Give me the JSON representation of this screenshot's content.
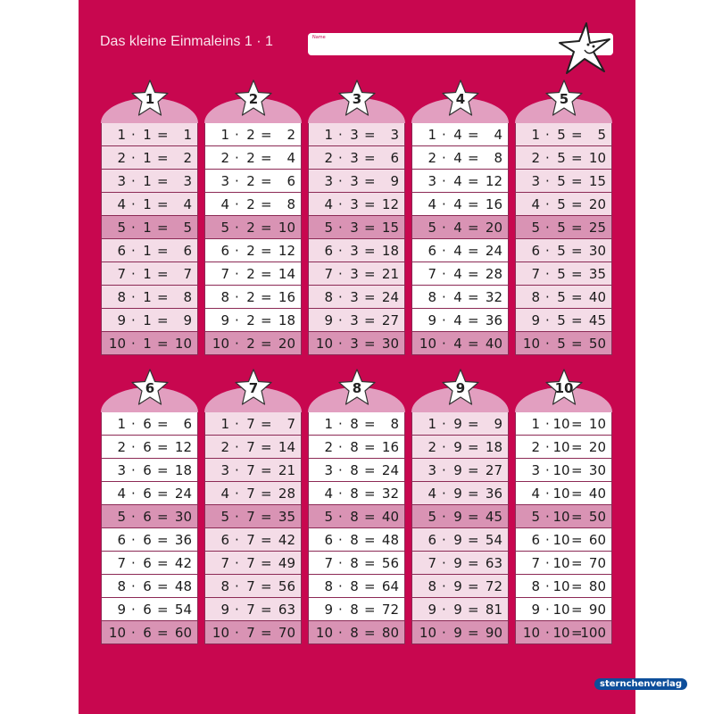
{
  "header": {
    "title": "Das kleine Einmaleins  1 · 1",
    "name_label": "Name"
  },
  "colors": {
    "background": "#c8074f",
    "row_light": "#f4dce7",
    "row_white": "#ffffff",
    "row_dark": "#d993b4",
    "arch": "#e29fc0",
    "logo": "#0d4e9b"
  },
  "publisher": "sternchenverlag",
  "tables": [
    {
      "n": "1",
      "rows": [
        [
          "1",
          "1",
          "1"
        ],
        [
          "2",
          "1",
          "2"
        ],
        [
          "3",
          "1",
          "3"
        ],
        [
          "4",
          "1",
          "4"
        ],
        [
          "5",
          "1",
          "5"
        ],
        [
          "6",
          "1",
          "6"
        ],
        [
          "7",
          "1",
          "7"
        ],
        [
          "8",
          "1",
          "8"
        ],
        [
          "9",
          "1",
          "9"
        ],
        [
          "10",
          "1",
          "10"
        ]
      ]
    },
    {
      "n": "2",
      "rows": [
        [
          "1",
          "2",
          "2"
        ],
        [
          "2",
          "2",
          "4"
        ],
        [
          "3",
          "2",
          "6"
        ],
        [
          "4",
          "2",
          "8"
        ],
        [
          "5",
          "2",
          "10"
        ],
        [
          "6",
          "2",
          "12"
        ],
        [
          "7",
          "2",
          "14"
        ],
        [
          "8",
          "2",
          "16"
        ],
        [
          "9",
          "2",
          "18"
        ],
        [
          "10",
          "2",
          "20"
        ]
      ]
    },
    {
      "n": "3",
      "rows": [
        [
          "1",
          "3",
          "3"
        ],
        [
          "2",
          "3",
          "6"
        ],
        [
          "3",
          "3",
          "9"
        ],
        [
          "4",
          "3",
          "12"
        ],
        [
          "5",
          "3",
          "15"
        ],
        [
          "6",
          "3",
          "18"
        ],
        [
          "7",
          "3",
          "21"
        ],
        [
          "8",
          "3",
          "24"
        ],
        [
          "9",
          "3",
          "27"
        ],
        [
          "10",
          "3",
          "30"
        ]
      ]
    },
    {
      "n": "4",
      "rows": [
        [
          "1",
          "4",
          "4"
        ],
        [
          "2",
          "4",
          "8"
        ],
        [
          "3",
          "4",
          "12"
        ],
        [
          "4",
          "4",
          "16"
        ],
        [
          "5",
          "4",
          "20"
        ],
        [
          "6",
          "4",
          "24"
        ],
        [
          "7",
          "4",
          "28"
        ],
        [
          "8",
          "4",
          "32"
        ],
        [
          "9",
          "4",
          "36"
        ],
        [
          "10",
          "4",
          "40"
        ]
      ]
    },
    {
      "n": "5",
      "rows": [
        [
          "1",
          "5",
          "5"
        ],
        [
          "2",
          "5",
          "10"
        ],
        [
          "3",
          "5",
          "15"
        ],
        [
          "4",
          "5",
          "20"
        ],
        [
          "5",
          "5",
          "25"
        ],
        [
          "6",
          "5",
          "30"
        ],
        [
          "7",
          "5",
          "35"
        ],
        [
          "8",
          "5",
          "40"
        ],
        [
          "9",
          "5",
          "45"
        ],
        [
          "10",
          "5",
          "50"
        ]
      ]
    },
    {
      "n": "6",
      "rows": [
        [
          "1",
          "6",
          "6"
        ],
        [
          "2",
          "6",
          "12"
        ],
        [
          "3",
          "6",
          "18"
        ],
        [
          "4",
          "6",
          "24"
        ],
        [
          "5",
          "6",
          "30"
        ],
        [
          "6",
          "6",
          "36"
        ],
        [
          "7",
          "6",
          "42"
        ],
        [
          "8",
          "6",
          "48"
        ],
        [
          "9",
          "6",
          "54"
        ],
        [
          "10",
          "6",
          "60"
        ]
      ]
    },
    {
      "n": "7",
      "rows": [
        [
          "1",
          "7",
          "7"
        ],
        [
          "2",
          "7",
          "14"
        ],
        [
          "3",
          "7",
          "21"
        ],
        [
          "4",
          "7",
          "28"
        ],
        [
          "5",
          "7",
          "35"
        ],
        [
          "6",
          "7",
          "42"
        ],
        [
          "7",
          "7",
          "49"
        ],
        [
          "8",
          "7",
          "56"
        ],
        [
          "9",
          "7",
          "63"
        ],
        [
          "10",
          "7",
          "70"
        ]
      ]
    },
    {
      "n": "8",
      "rows": [
        [
          "1",
          "8",
          "8"
        ],
        [
          "2",
          "8",
          "16"
        ],
        [
          "3",
          "8",
          "24"
        ],
        [
          "4",
          "8",
          "32"
        ],
        [
          "5",
          "8",
          "40"
        ],
        [
          "6",
          "8",
          "48"
        ],
        [
          "7",
          "8",
          "56"
        ],
        [
          "8",
          "8",
          "64"
        ],
        [
          "9",
          "8",
          "72"
        ],
        [
          "10",
          "8",
          "80"
        ]
      ]
    },
    {
      "n": "9",
      "rows": [
        [
          "1",
          "9",
          "9"
        ],
        [
          "2",
          "9",
          "18"
        ],
        [
          "3",
          "9",
          "27"
        ],
        [
          "4",
          "9",
          "36"
        ],
        [
          "5",
          "9",
          "45"
        ],
        [
          "6",
          "9",
          "54"
        ],
        [
          "7",
          "9",
          "63"
        ],
        [
          "8",
          "9",
          "72"
        ],
        [
          "9",
          "9",
          "81"
        ],
        [
          "10",
          "9",
          "90"
        ]
      ]
    },
    {
      "n": "10",
      "rows": [
        [
          "1",
          "10",
          "10"
        ],
        [
          "2",
          "10",
          "20"
        ],
        [
          "3",
          "10",
          "30"
        ],
        [
          "4",
          "10",
          "40"
        ],
        [
          "5",
          "10",
          "50"
        ],
        [
          "6",
          "10",
          "60"
        ],
        [
          "7",
          "10",
          "70"
        ],
        [
          "8",
          "10",
          "80"
        ],
        [
          "9",
          "10",
          "90"
        ],
        [
          "10",
          "10",
          "100"
        ]
      ]
    }
  ]
}
